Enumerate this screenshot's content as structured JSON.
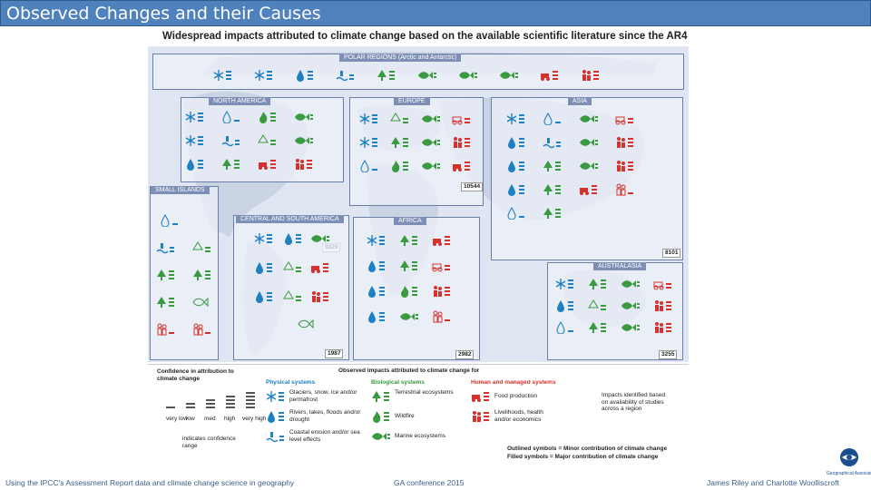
{
  "slide": {
    "title": "Observed Changes and their Causes"
  },
  "figure": {
    "title": "Widespread impacts attributed to climate change based on the available scientific literature since the AR4",
    "regions": {
      "polar": {
        "label": "POLAR REGIONS (Arctic and Antarctic)"
      },
      "north_america": {
        "label": "NORTH AMERICA",
        "ref": "9329"
      },
      "europe": {
        "label": "EUROPE",
        "ref": "10544"
      },
      "asia": {
        "label": "ASIA",
        "ref": "8101"
      },
      "small_islands": {
        "label": "SMALL ISLANDS"
      },
      "central_south_america": {
        "label": "CENTRAL AND SOUTH AMERICA",
        "ref": "1987"
      },
      "africa": {
        "label": "AFRICA",
        "ref": "2982"
      },
      "australasia": {
        "label": "AUSTRALASIA",
        "ref": "3255"
      }
    },
    "legend": {
      "confidence_title": "Confidence in attribution to climate change",
      "confidence_levels": [
        "very low",
        "low",
        "med",
        "high",
        "very high"
      ],
      "confidence_range_note": "indicates confidence range",
      "observed_title": "Observed impacts attributed to climate change for",
      "physical_header": "Physical systems",
      "physical_items": [
        "Glaciers, snow, ice and/or permafrost",
        "Rivers, lakes, floods and/or drought",
        "Coastal erosion and/or sea level effects"
      ],
      "biological_header": "Biological systems",
      "biological_items": [
        "Terrestrial ecosystems",
        "Wildfire",
        "Marine ecosystems"
      ],
      "human_header": "Human and managed systems",
      "human_items": [
        "Food production",
        "Livelihoods, health and/or economics"
      ],
      "star_note": "Impacts identified based on availability of studies across a region",
      "outlined_note": "Outlined symbols = Minor contribution of climate change",
      "filled_note": "Filled symbols = Major contribution of climate change"
    }
  },
  "footer": {
    "left": "Using the IPCC's Assessment Report data and climate change science in geography",
    "center": "GA conference 2015",
    "right": "James Riley and Charlotte Woolliscroft"
  },
  "logo": {
    "icon": "geographical-association-logo",
    "text": "Geographical Association"
  },
  "colors": {
    "title_bar": "#4f81bd",
    "physical": "#1f80c2",
    "biological": "#3a9a3f",
    "human": "#d6312b",
    "region_header": "#7d8fb5"
  }
}
